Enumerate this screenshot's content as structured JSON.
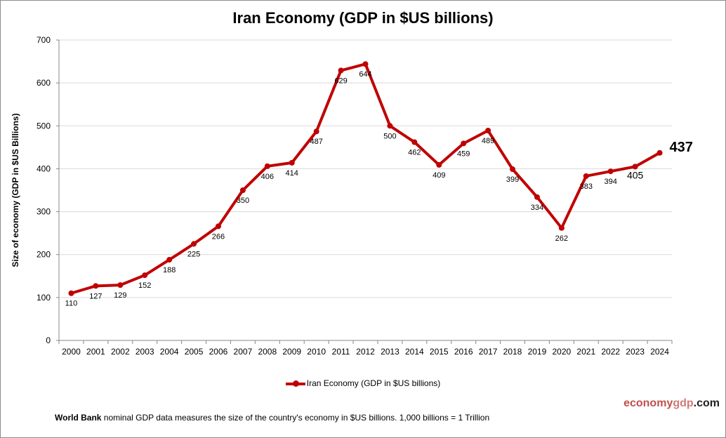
{
  "chart_data": {
    "type": "line",
    "title": "Iran Economy (GDP in $US billions)",
    "xlabel": "",
    "ylabel": "Size of economy (GDP in $US Billions)",
    "ylim": [
      0,
      700
    ],
    "yticks": [
      0,
      100,
      200,
      300,
      400,
      500,
      600,
      700
    ],
    "grid": true,
    "legend_position": "bottom",
    "categories": [
      "2000",
      "2001",
      "2002",
      "2003",
      "2004",
      "2005",
      "2006",
      "2007",
      "2008",
      "2009",
      "2010",
      "2011",
      "2012",
      "2013",
      "2014",
      "2015",
      "2016",
      "2017",
      "2018",
      "2019",
      "2020",
      "2021",
      "2022",
      "2023",
      "2024"
    ],
    "series": [
      {
        "name": "Iran Economy (GDP in $US billions)",
        "color": "#c00000",
        "values": [
          110,
          127,
          129,
          152,
          188,
          225,
          266,
          350,
          406,
          414,
          487,
          629,
          644,
          500,
          462,
          409,
          459,
          489,
          399,
          334,
          262,
          383,
          394,
          405,
          437
        ]
      }
    ]
  },
  "brand": {
    "part1": "economy",
    "part2": "gdp",
    "part3": ".com"
  },
  "note": {
    "bold": "World Bank",
    "text": " nominal GDP data  measures the size of the country's economy in $US billions. 1,000 billions = 1 Trillion"
  }
}
